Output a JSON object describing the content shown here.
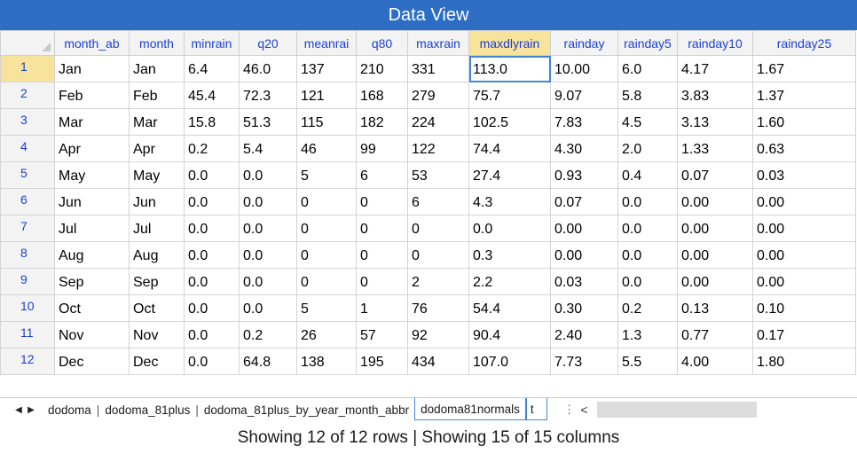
{
  "window": {
    "title": "Data View"
  },
  "columns": [
    "month_ab",
    "month",
    "minrain",
    "q20",
    "meanrai",
    "q80",
    "maxrain",
    "maxdlyrain",
    "rainday",
    "rainday5",
    "rainday10",
    "rainday25"
  ],
  "selected_column": "maxdlyrain",
  "rows": [
    {
      "num": "1",
      "cells": [
        "Jan",
        "Jan",
        "6.4",
        "46.0",
        "137",
        "210",
        "331",
        "113.0",
        "10.00",
        "6.0",
        "4.17",
        "1.67"
      ]
    },
    {
      "num": "2",
      "cells": [
        "Feb",
        "Feb",
        "45.4",
        "72.3",
        "121",
        "168",
        "279",
        "75.7",
        "9.07",
        "5.8",
        "3.83",
        "1.37"
      ]
    },
    {
      "num": "3",
      "cells": [
        "Mar",
        "Mar",
        "15.8",
        "51.3",
        "115",
        "182",
        "224",
        "102.5",
        "7.83",
        "4.5",
        "3.13",
        "1.60"
      ]
    },
    {
      "num": "4",
      "cells": [
        "Apr",
        "Apr",
        "0.2",
        "5.4",
        "46",
        "99",
        "122",
        "74.4",
        "4.30",
        "2.0",
        "1.33",
        "0.63"
      ]
    },
    {
      "num": "5",
      "cells": [
        "May",
        "May",
        "0.0",
        "0.0",
        "5",
        "6",
        "53",
        "27.4",
        "0.93",
        "0.4",
        "0.07",
        "0.03"
      ]
    },
    {
      "num": "6",
      "cells": [
        "Jun",
        "Jun",
        "0.0",
        "0.0",
        "0",
        "0",
        "6",
        "4.3",
        "0.07",
        "0.0",
        "0.00",
        "0.00"
      ]
    },
    {
      "num": "7",
      "cells": [
        "Jul",
        "Jul",
        "0.0",
        "0.0",
        "0",
        "0",
        "0",
        "0.0",
        "0.00",
        "0.0",
        "0.00",
        "0.00"
      ]
    },
    {
      "num": "8",
      "cells": [
        "Aug",
        "Aug",
        "0.0",
        "0.0",
        "0",
        "0",
        "0",
        "0.3",
        "0.00",
        "0.0",
        "0.00",
        "0.00"
      ]
    },
    {
      "num": "9",
      "cells": [
        "Sep",
        "Sep",
        "0.0",
        "0.0",
        "0",
        "0",
        "2",
        "2.2",
        "0.03",
        "0.0",
        "0.00",
        "0.00"
      ]
    },
    {
      "num": "10",
      "cells": [
        "Oct",
        "Oct",
        "0.0",
        "0.0",
        "5",
        "1",
        "76",
        "54.4",
        "0.30",
        "0.2",
        "0.13",
        "0.10"
      ]
    },
    {
      "num": "11",
      "cells": [
        "Nov",
        "Nov",
        "0.0",
        "0.2",
        "26",
        "57",
        "92",
        "90.4",
        "2.40",
        "1.3",
        "0.77",
        "0.17"
      ]
    },
    {
      "num": "12",
      "cells": [
        "Dec",
        "Dec",
        "0.0",
        "64.8",
        "138",
        "195",
        "434",
        "107.0",
        "7.73",
        "5.5",
        "4.00",
        "1.80"
      ]
    }
  ],
  "active_cell": {
    "row": 0,
    "column": "maxdlyrain"
  },
  "tabs": [
    {
      "label": "dodoma",
      "active": false
    },
    {
      "label": "dodoma_81plus",
      "active": false
    },
    {
      "label": "dodoma_81plus_by_year_month_abbr",
      "active": false
    },
    {
      "label": "dodoma81normals",
      "active": true
    },
    {
      "label": "t",
      "active": false,
      "partial": true
    }
  ],
  "tab_overflow_glyph": "⋮",
  "status": {
    "text": "Showing 12 of 12 rows | Showing 15 of 15 columns"
  },
  "icons": {
    "nav_prev": "triangle-left-icon",
    "nav_next": "triangle-right-icon",
    "scroll_left": "chevron-left-icon"
  },
  "colors": {
    "titlebar": "#2d6ec4",
    "header_text": "#1a3fd6",
    "selected_header": "#f7e39b",
    "active_cell_border": "#3f86d4"
  }
}
